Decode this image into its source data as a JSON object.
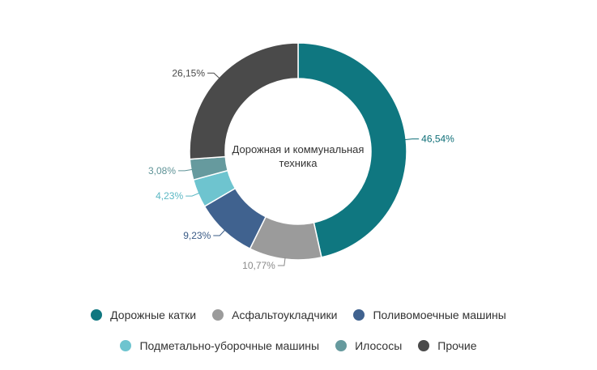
{
  "chart_data": {
    "type": "donut",
    "center_label": [
      "Дорожная и коммунальная",
      "техника"
    ],
    "unit": "%",
    "slices": [
      {
        "name": "Дорожные катки",
        "value": 46.54,
        "label": "46,54%",
        "color": "#0f7780",
        "label_color": "#0f6f78"
      },
      {
        "name": "Асфальтоукладчики",
        "value": 10.77,
        "label": "10,77%",
        "color": "#9b9b9b",
        "label_color": "#8a8a8a"
      },
      {
        "name": "Поливомоечные машины",
        "value": 9.23,
        "label": "9,23%",
        "color": "#40628f",
        "label_color": "#3a5b86"
      },
      {
        "name": "Подметально-уборочные машины",
        "value": 4.23,
        "label": "4,23%",
        "color": "#6ec4cf",
        "label_color": "#5cb8c4"
      },
      {
        "name": "Илососы",
        "value": 3.08,
        "label": "3,08%",
        "color": "#669a9e",
        "label_color": "#5f9397"
      },
      {
        "name": "Прочие",
        "value": 26.15,
        "label": "26,15%",
        "color": "#4a4a4a",
        "label_color": "#4a4a4a"
      }
    ],
    "legend_placement": "bottom"
  }
}
